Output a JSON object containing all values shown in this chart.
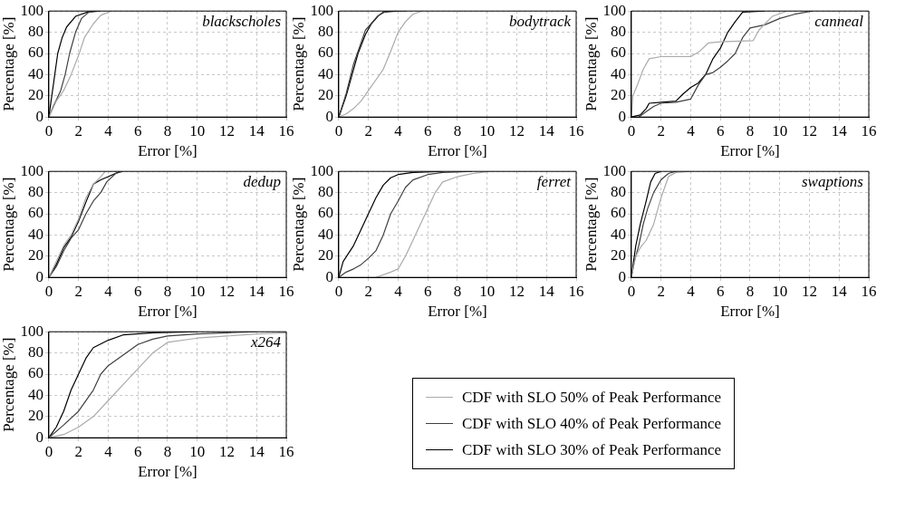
{
  "chart_data": [
    {
      "type": "line",
      "title": "blackscholes",
      "xlabel": "Error [%]",
      "ylabel": "Percentage [%]",
      "xlim": [
        0,
        16
      ],
      "xticks": [
        0,
        2,
        4,
        6,
        8,
        10,
        12,
        14,
        16
      ],
      "ylim": [
        0,
        100
      ],
      "yticks": [
        0,
        20,
        40,
        60,
        80,
        100
      ],
      "grid": true,
      "legend": false,
      "marker": "none",
      "line_style": "solid",
      "series": [
        {
          "color": "#aaaaaa",
          "x": [
            0,
            0.5,
            1,
            1.5,
            2,
            2.4,
            3,
            3.5,
            4.2
          ],
          "values": [
            0,
            15,
            25,
            40,
            58,
            75,
            88,
            96,
            100
          ]
        },
        {
          "color": "#404040",
          "x": [
            0,
            0.3,
            0.8,
            1.1,
            1.4,
            1.8,
            2.2,
            2.7,
            3.5
          ],
          "values": [
            0,
            10,
            25,
            40,
            60,
            80,
            93,
            99,
            100
          ]
        },
        {
          "color": "#000000",
          "x": [
            0,
            0.2,
            0.4,
            0.6,
            0.9,
            1.2,
            1.8,
            2.6,
            3.2
          ],
          "values": [
            0,
            20,
            40,
            60,
            75,
            85,
            95,
            99,
            100
          ]
        }
      ]
    },
    {
      "type": "line",
      "title": "bodytrack",
      "xlabel": "Error [%]",
      "ylabel": "Percentage [%]",
      "xlim": [
        0,
        16
      ],
      "xticks": [
        0,
        2,
        4,
        6,
        8,
        10,
        12,
        14,
        16
      ],
      "ylim": [
        0,
        100
      ],
      "yticks": [
        0,
        20,
        40,
        60,
        80,
        100
      ],
      "grid": true,
      "legend": false,
      "marker": "none",
      "line_style": "solid",
      "series": [
        {
          "color": "#aaaaaa",
          "x": [
            0,
            0.5,
            1,
            1.5,
            2,
            2.5,
            3,
            3.5,
            4,
            4.5,
            5,
            5.6
          ],
          "values": [
            0,
            3,
            8,
            15,
            25,
            35,
            45,
            62,
            80,
            90,
            97,
            100
          ]
        },
        {
          "color": "#404040",
          "x": [
            0,
            0.5,
            1,
            1.3,
            1.8,
            2.3,
            2.6,
            3.2,
            4.6
          ],
          "values": [
            0,
            22,
            50,
            62,
            82,
            90,
            95,
            100,
            100
          ]
        },
        {
          "color": "#000000",
          "x": [
            0,
            0.5,
            1,
            1.3,
            1.8,
            2.2,
            2.7,
            3,
            4
          ],
          "values": [
            0,
            20,
            45,
            60,
            78,
            88,
            96,
            99,
            100
          ]
        }
      ]
    },
    {
      "type": "line",
      "title": "canneal",
      "xlabel": "Error [%]",
      "ylabel": "Percentage [%]",
      "xlim": [
        0,
        16
      ],
      "xticks": [
        0,
        2,
        4,
        6,
        8,
        10,
        12,
        14,
        16
      ],
      "ylim": [
        0,
        100
      ],
      "yticks": [
        0,
        20,
        40,
        60,
        80,
        100
      ],
      "grid": true,
      "legend": false,
      "marker": "none",
      "line_style": "solid",
      "series": [
        {
          "color": "#aaaaaa",
          "x": [
            0,
            0.1,
            0.4,
            0.8,
            1.2,
            2,
            4,
            4.6,
            5.2,
            6,
            8.2,
            8.6,
            9,
            9.5,
            10.5
          ],
          "values": [
            0,
            20,
            30,
            45,
            55,
            57,
            57,
            62,
            70,
            71,
            72,
            82,
            88,
            95,
            100
          ]
        },
        {
          "color": "#404040",
          "x": [
            0.5,
            1,
            1.5,
            2,
            3,
            4,
            4.5,
            5,
            5.5,
            6,
            6.5,
            7,
            7.5,
            8,
            9,
            10,
            11,
            12.2
          ],
          "values": [
            0,
            5,
            10,
            13,
            14,
            17,
            30,
            40,
            42,
            47,
            53,
            60,
            75,
            84,
            87,
            93,
            97,
            100
          ]
        },
        {
          "color": "#000000",
          "x": [
            0,
            0.6,
            1,
            1.2,
            2,
            3,
            3.5,
            4,
            4.5,
            5,
            5.5,
            6,
            6.5,
            7,
            7.5,
            9
          ],
          "values": [
            0,
            2,
            8,
            13,
            14,
            15,
            22,
            28,
            32,
            40,
            55,
            65,
            80,
            90,
            99,
            100
          ]
        }
      ]
    },
    {
      "type": "line",
      "title": "dedup",
      "xlabel": "Error [%]",
      "ylabel": "Percentage [%]",
      "xlim": [
        0,
        16
      ],
      "xticks": [
        0,
        2,
        4,
        6,
        8,
        10,
        12,
        14,
        16
      ],
      "ylim": [
        0,
        100
      ],
      "yticks": [
        0,
        20,
        40,
        60,
        80,
        100
      ],
      "grid": true,
      "legend": false,
      "marker": "none",
      "line_style": "solid",
      "series": [
        {
          "color": "#aaaaaa",
          "x": [
            0,
            0.5,
            1,
            1.5,
            2,
            2.5,
            3,
            3.5,
            3.8
          ],
          "values": [
            0,
            15,
            30,
            40,
            55,
            75,
            88,
            95,
            100
          ]
        },
        {
          "color": "#404040",
          "x": [
            0,
            0.5,
            1,
            1.5,
            2,
            2.5,
            3,
            3.5,
            3.9,
            4.5,
            5
          ],
          "values": [
            0,
            10,
            25,
            37,
            45,
            60,
            72,
            80,
            90,
            98,
            100
          ]
        },
        {
          "color": "#000000",
          "x": [
            0,
            0.5,
            1,
            1.5,
            2,
            2.5,
            3,
            3.5,
            4,
            4.8
          ],
          "values": [
            0,
            12,
            28,
            38,
            53,
            71,
            88,
            92,
            95,
            100
          ]
        }
      ]
    },
    {
      "type": "line",
      "title": "ferret",
      "xlabel": "Error [%]",
      "ylabel": "Percentage [%]",
      "xlim": [
        0,
        16
      ],
      "xticks": [
        0,
        2,
        4,
        6,
        8,
        10,
        12,
        14,
        16
      ],
      "ylim": [
        0,
        100
      ],
      "yticks": [
        0,
        20,
        40,
        60,
        80,
        100
      ],
      "grid": true,
      "legend": false,
      "marker": "none",
      "line_style": "solid",
      "series": [
        {
          "color": "#aaaaaa",
          "x": [
            2.5,
            3.5,
            4,
            4.5,
            5,
            5.5,
            6,
            6.5,
            7,
            8,
            9,
            10.2
          ],
          "values": [
            0,
            5,
            8,
            20,
            35,
            50,
            65,
            80,
            90,
            95,
            98,
            100
          ]
        },
        {
          "color": "#404040",
          "x": [
            0,
            0.5,
            1,
            1.5,
            2,
            2.5,
            3,
            3.5,
            4,
            4.5,
            5,
            6,
            7,
            9
          ],
          "values": [
            0,
            5,
            8,
            12,
            18,
            25,
            40,
            60,
            72,
            85,
            92,
            97,
            99,
            100
          ]
        },
        {
          "color": "#000000",
          "x": [
            0,
            0.3,
            1,
            1.5,
            2,
            2.5,
            3,
            3.5,
            4,
            5,
            7
          ],
          "values": [
            0,
            15,
            30,
            45,
            60,
            75,
            87,
            94,
            97,
            99,
            100
          ]
        }
      ]
    },
    {
      "type": "line",
      "title": "swaptions",
      "xlabel": "Error [%]",
      "ylabel": "Percentage [%]",
      "xlim": [
        0,
        16
      ],
      "xticks": [
        0,
        2,
        4,
        6,
        8,
        10,
        12,
        14,
        16
      ],
      "ylim": [
        0,
        100
      ],
      "yticks": [
        0,
        20,
        40,
        60,
        80,
        100
      ],
      "grid": true,
      "legend": false,
      "marker": "none",
      "line_style": "solid",
      "series": [
        {
          "color": "#aaaaaa",
          "x": [
            0,
            0.3,
            0.6,
            1,
            1.5,
            2,
            2.5,
            3,
            4
          ],
          "values": [
            0,
            20,
            28,
            35,
            50,
            75,
            95,
            99,
            100
          ]
        },
        {
          "color": "#404040",
          "x": [
            0,
            0.2,
            0.5,
            0.8,
            1.1,
            1.5,
            2,
            2.5,
            3
          ],
          "values": [
            0,
            15,
            30,
            50,
            65,
            80,
            92,
            98,
            100
          ]
        },
        {
          "color": "#000000",
          "x": [
            0,
            0.3,
            0.6,
            1,
            1.3,
            1.6,
            2
          ],
          "values": [
            0,
            30,
            50,
            72,
            90,
            98,
            100
          ]
        }
      ]
    },
    {
      "type": "line",
      "title": "x264",
      "xlabel": "Error [%]",
      "ylabel": "Percentage [%]",
      "xlim": [
        0,
        16
      ],
      "xticks": [
        0,
        2,
        4,
        6,
        8,
        10,
        12,
        14,
        16
      ],
      "ylim": [
        0,
        100
      ],
      "yticks": [
        0,
        20,
        40,
        60,
        80,
        100
      ],
      "grid": true,
      "legend": "right",
      "marker": "none",
      "line_style": "solid",
      "series": [
        {
          "name": "CDF with SLO 50% of Peak Performance",
          "color": "#aaaaaa",
          "x": [
            0,
            1,
            2,
            3,
            4,
            5,
            6,
            7,
            8,
            10,
            12,
            14,
            16
          ],
          "values": [
            0,
            3,
            10,
            20,
            35,
            50,
            65,
            80,
            90,
            94,
            96,
            98,
            99
          ]
        },
        {
          "name": "CDF with SLO 40% of Peak Performance",
          "color": "#404040",
          "x": [
            0,
            1,
            2,
            3,
            3.5,
            4,
            5,
            6,
            7,
            8,
            10,
            14
          ],
          "values": [
            0,
            12,
            25,
            45,
            60,
            68,
            78,
            88,
            93,
            96,
            98,
            100
          ]
        },
        {
          "name": "CDF with SLO 30% of Peak Performance",
          "color": "#000000",
          "x": [
            0,
            0.5,
            1,
            1.5,
            2,
            2.5,
            3,
            4,
            5,
            7,
            10
          ],
          "values": [
            0,
            10,
            25,
            45,
            60,
            75,
            85,
            92,
            97,
            99,
            100
          ]
        }
      ]
    }
  ]
}
